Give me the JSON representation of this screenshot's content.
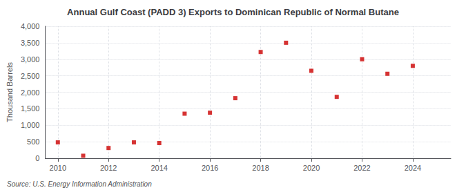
{
  "chart_data": {
    "type": "scatter",
    "title": "Annual Gulf Coast (PADD 3) Exports to Dominican Republic of Normal Butane",
    "ylabel": "Thousand Barrels",
    "annotations": [
      "Source: U.S. Energy Information Administration"
    ],
    "x": [
      2010,
      2011,
      2012,
      2013,
      2014,
      2015,
      2016,
      2017,
      2018,
      2019,
      2020,
      2021,
      2022,
      2023,
      2024
    ],
    "values": [
      480,
      75,
      310,
      480,
      460,
      1350,
      1380,
      1820,
      3220,
      3500,
      2650,
      1860,
      3000,
      2560,
      2800
    ],
    "color": "#cc0000",
    "marker": "square",
    "xlim": [
      2009.5,
      2025.5
    ],
    "xticks": [
      2010,
      2012,
      2014,
      2016,
      2018,
      2020,
      2022,
      2024
    ],
    "ylim": [
      0,
      4000
    ],
    "yticks": [
      0,
      500,
      {
        "value": 1000,
        "label": "1,000"
      },
      {
        "value": 1500,
        "label": "1,500"
      },
      {
        "value": 2000,
        "label": "2,000"
      },
      {
        "value": 2500,
        "label": "2,500"
      },
      {
        "value": 3000,
        "label": "3,000"
      },
      {
        "value": 3500,
        "label": "3,500"
      },
      {
        "value": 4000,
        "label": "4,000"
      }
    ],
    "grid": true
  }
}
